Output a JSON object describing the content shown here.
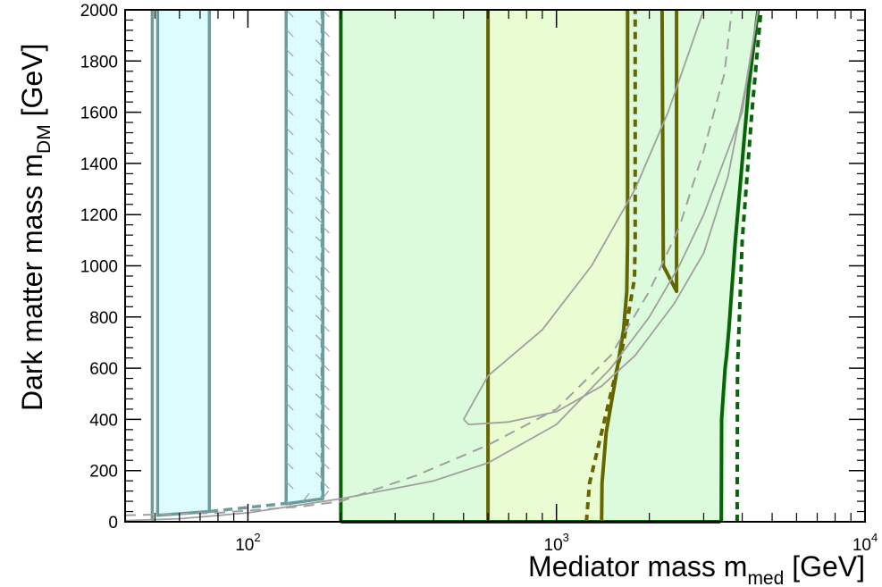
{
  "chart_data": {
    "type": "line",
    "title": "",
    "xlabel": {
      "main": "Mediator mass m",
      "sub": "med",
      "unit": " [GeV]"
    },
    "ylabel": {
      "main": "Dark matter mass m",
      "sub": "DM",
      "unit": " [GeV]"
    },
    "x_scale": "log",
    "xlim": [
      40,
      10000
    ],
    "ylim": [
      0,
      2000
    ],
    "x_ticks": [
      {
        "value": 100,
        "base": "10",
        "exp": "2"
      },
      {
        "value": 1000,
        "base": "10",
        "exp": "3"
      },
      {
        "value": 10000,
        "base": "10",
        "exp": "4"
      }
    ],
    "y_ticks": [
      0,
      200,
      400,
      600,
      800,
      1000,
      1200,
      1400,
      1600,
      1800,
      2000
    ],
    "grid": false,
    "colors": {
      "cyan_fill": "#dcfcff",
      "cyan_line": "#6a9c9c",
      "green_fill": "#dcfadc",
      "green_line": "#0a630a",
      "yellow_fill": "#eafcd2",
      "olive_line": "#666600",
      "gray_line": "#a0a0a0"
    },
    "regions": [
      {
        "fill": "cyan_fill",
        "points": [
          [
            51,
            2000
          ],
          [
            75,
            2000
          ],
          [
            75,
            40
          ],
          [
            51,
            25
          ]
        ]
      },
      {
        "fill": "cyan_fill",
        "points": [
          [
            133,
            2000
          ],
          [
            175,
            2000
          ],
          [
            175,
            90
          ],
          [
            133,
            70
          ]
        ]
      },
      {
        "fill": "green_fill",
        "points": [
          [
            200,
            2000
          ],
          [
            4500,
            2000
          ],
          [
            3600,
            600
          ],
          [
            3500,
            0
          ],
          [
            200,
            0
          ]
        ]
      },
      {
        "fill": "yellow_fill",
        "points": [
          [
            600,
            2000
          ],
          [
            1650,
            2000
          ],
          [
            1650,
            1000
          ],
          [
            1400,
            0
          ],
          [
            600,
            0
          ]
        ]
      }
    ],
    "series": [
      {
        "style": "cyan_solid",
        "points": [
          [
            49,
            0
          ],
          [
            49,
            2000
          ]
        ]
      },
      {
        "style": "cyan_solid",
        "points": [
          [
            51,
            2000
          ],
          [
            51,
            25
          ],
          [
            75,
            40
          ],
          [
            75,
            2000
          ]
        ]
      },
      {
        "style": "cyan_solid",
        "points": [
          [
            133,
            2000
          ],
          [
            133,
            70
          ],
          [
            175,
            90
          ],
          [
            175,
            2000
          ]
        ]
      },
      {
        "style": "cyan_dashed",
        "points": [
          [
            174,
            2000
          ],
          [
            174,
            95
          ]
        ]
      },
      {
        "style": "cyan_dashed",
        "points": [
          [
            75,
            40
          ],
          [
            133,
            72
          ]
        ]
      },
      {
        "style": "green_solid",
        "points": [
          [
            200,
            0
          ],
          [
            200,
            2000
          ]
        ]
      },
      {
        "style": "green_solid",
        "points": [
          [
            200,
            0
          ],
          [
            3400,
            0
          ]
        ]
      },
      {
        "style": "green_solid",
        "points": [
          [
            3420,
            0
          ],
          [
            3430,
            400
          ],
          [
            3520,
            600
          ],
          [
            3560,
            650
          ],
          [
            3620,
            750
          ],
          [
            3800,
            1100
          ],
          [
            4200,
            1700
          ],
          [
            4500,
            2000
          ]
        ]
      },
      {
        "style": "green_dashed",
        "points": [
          [
            3850,
            0
          ],
          [
            3860,
            600
          ],
          [
            4000,
            1100
          ],
          [
            4300,
            1600
          ],
          [
            4600,
            2000
          ]
        ]
      },
      {
        "style": "olive_solid",
        "points": [
          [
            600,
            0
          ],
          [
            600,
            2000
          ]
        ]
      },
      {
        "style": "olive_solid",
        "points": [
          [
            1400,
            0
          ],
          [
            1405,
            150
          ],
          [
            1450,
            350
          ],
          [
            1550,
            550
          ],
          [
            1650,
            750
          ],
          [
            1690,
            900
          ],
          [
            1700,
            1100
          ],
          [
            1700,
            2000
          ]
        ]
      },
      {
        "style": "olive_dashed",
        "points": [
          [
            1250,
            0
          ],
          [
            1280,
            150
          ],
          [
            1370,
            300
          ],
          [
            1500,
            500
          ],
          [
            1650,
            700
          ],
          [
            1790,
            950
          ],
          [
            1800,
            1100
          ],
          [
            1800,
            2000
          ]
        ]
      },
      {
        "style": "olive_solid",
        "points": [
          [
            2200,
            2000
          ],
          [
            2220,
            1000
          ],
          [
            2450,
            900
          ],
          [
            2450,
            2000
          ]
        ]
      },
      {
        "style": "gray_solid",
        "points": [
          [
            500,
            400
          ],
          [
            520,
            380
          ],
          [
            700,
            390
          ],
          [
            1000,
            430
          ],
          [
            1400,
            530
          ],
          [
            1800,
            650
          ],
          [
            2400,
            850
          ],
          [
            3000,
            1050
          ],
          [
            3600,
            1350
          ],
          [
            4100,
            1700
          ],
          [
            4500,
            2000
          ]
        ]
      },
      {
        "style": "gray_solid",
        "points": [
          [
            500,
            400
          ],
          [
            600,
            570
          ],
          [
            900,
            750
          ],
          [
            1300,
            1000
          ],
          [
            1800,
            1300
          ],
          [
            2300,
            1600
          ],
          [
            3000,
            2000
          ]
        ]
      },
      {
        "style": "gray_solid",
        "points": [
          [
            40,
            5
          ],
          [
            60,
            12
          ],
          [
            100,
            35
          ],
          [
            200,
            90
          ],
          [
            400,
            160
          ],
          [
            600,
            230
          ],
          [
            1000,
            380
          ],
          [
            1500,
            600
          ],
          [
            2000,
            800
          ],
          [
            2500,
            1000
          ],
          [
            3000,
            1200
          ],
          [
            4000,
            1600
          ],
          [
            4500,
            2000
          ]
        ]
      },
      {
        "style": "gray_dashed",
        "points": [
          [
            40,
            25
          ],
          [
            80,
            35
          ],
          [
            150,
            60
          ],
          [
            200,
            80
          ],
          [
            350,
            180
          ],
          [
            600,
            300
          ],
          [
            1000,
            440
          ],
          [
            1500,
            650
          ],
          [
            2000,
            900
          ],
          [
            2500,
            1150
          ],
          [
            3000,
            1450
          ],
          [
            3500,
            1750
          ],
          [
            3700,
            2000
          ]
        ]
      }
    ],
    "hatched_series": [
      2,
      3
    ]
  }
}
